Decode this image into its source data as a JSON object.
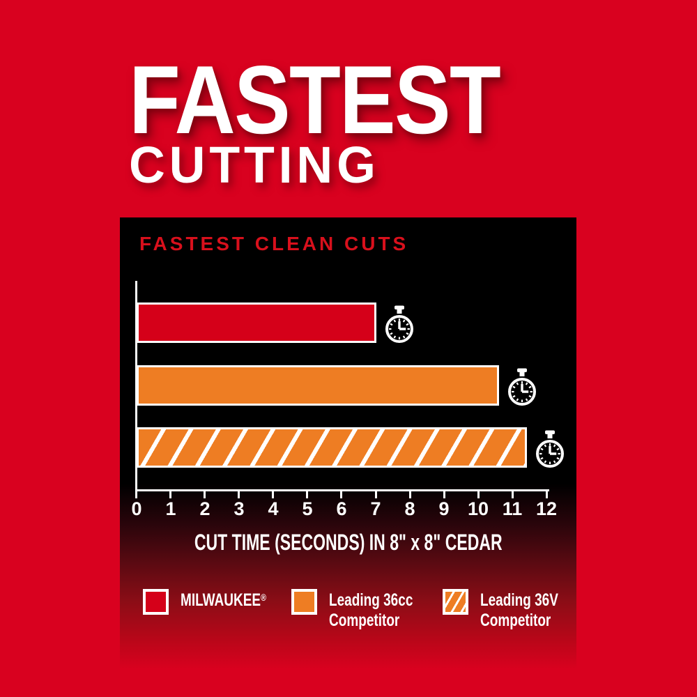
{
  "title": {
    "line1": "FASTEST",
    "line2": "CUTTING"
  },
  "chart_panel": {
    "heading": "FASTEST CLEAN CUTS",
    "xlabel": "CUT TIME (SECONDS) IN 8\" x 8\" CEDAR"
  },
  "chart_data": {
    "type": "bar",
    "orientation": "horizontal",
    "title": "FASTEST CLEAN CUTS",
    "xlabel": "CUT TIME (SECONDS) IN 8\" x 8\" CEDAR",
    "xlim": [
      0,
      12
    ],
    "xticks": [
      0,
      1,
      2,
      3,
      4,
      5,
      6,
      7,
      8,
      9,
      10,
      11,
      12
    ],
    "grid": false,
    "legend_position": "bottom",
    "series": [
      {
        "name": "MILWAUKEE",
        "value": 7.0,
        "style": "solid-red",
        "icon": "stopwatch-icon"
      },
      {
        "name": "Leading 36cc Competitor",
        "value": 10.6,
        "style": "solid-orange",
        "icon": "stopwatch-icon"
      },
      {
        "name": "Leading 36V Competitor",
        "value": 11.4,
        "style": "hatched-orange",
        "icon": "stopwatch-icon"
      }
    ]
  },
  "legend": {
    "items": [
      {
        "line1": "MILWAUKEE",
        "reg": "®",
        "line2": "",
        "swatch": "solid-red"
      },
      {
        "line1": "Leading 36cc",
        "reg": "",
        "line2": "Competitor",
        "swatch": "solid-orange"
      },
      {
        "line1": "Leading 36V",
        "reg": "",
        "line2": "Competitor",
        "swatch": "hatched-orange"
      }
    ]
  },
  "colors": {
    "background_red": "#d9011f",
    "bar_red": "#d50019",
    "competitor_orange": "#ee7d23",
    "panel_black": "#000000",
    "heading_red": "#d8101c",
    "text_white": "#ffffff"
  }
}
